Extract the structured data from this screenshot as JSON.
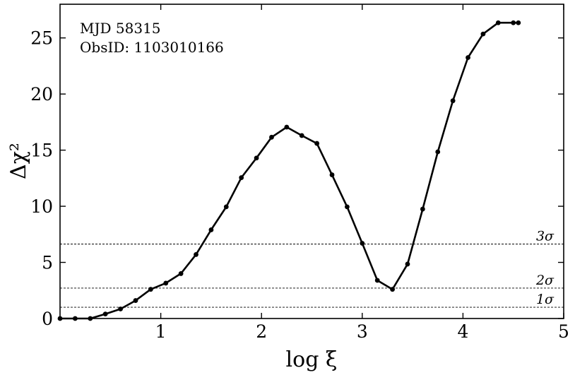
{
  "chart_data": {
    "type": "line",
    "xlabel": "log ξ",
    "ylabel": "Δχ²",
    "xlim": [
      0,
      5
    ],
    "ylim": [
      0,
      28
    ],
    "x_ticks": [
      1,
      2,
      3,
      4,
      5
    ],
    "y_ticks": [
      0,
      5,
      10,
      15,
      20,
      25
    ],
    "grid": false,
    "annotations": [
      "MJD 58315",
      "ObsID: 1103010166"
    ],
    "series": [
      {
        "color": "#000000",
        "x": [
          0.0,
          0.15,
          0.3,
          0.45,
          0.6,
          0.75,
          0.9,
          1.05,
          1.2,
          1.35,
          1.5,
          1.65,
          1.8,
          1.95,
          2.1,
          2.25,
          2.4,
          2.55,
          2.7,
          2.85,
          3.0,
          3.15,
          3.3,
          3.45,
          3.6,
          3.75,
          3.9,
          4.05,
          4.2,
          4.35,
          4.5,
          4.55
        ],
        "y": [
          0.0,
          0.0,
          0.0,
          0.4,
          0.85,
          1.6,
          2.6,
          3.15,
          4.0,
          5.7,
          7.9,
          9.95,
          12.55,
          14.3,
          16.15,
          17.05,
          16.3,
          15.6,
          12.8,
          9.95,
          6.7,
          3.4,
          2.6,
          4.85,
          9.75,
          14.85,
          19.4,
          23.25,
          25.35,
          26.35,
          26.35,
          26.35
        ]
      }
    ],
    "reference_lines": [
      {
        "y": 6.63,
        "label": "3σ"
      },
      {
        "y": 2.71,
        "label": "2σ"
      },
      {
        "y": 1.0,
        "label": "1σ"
      }
    ]
  }
}
